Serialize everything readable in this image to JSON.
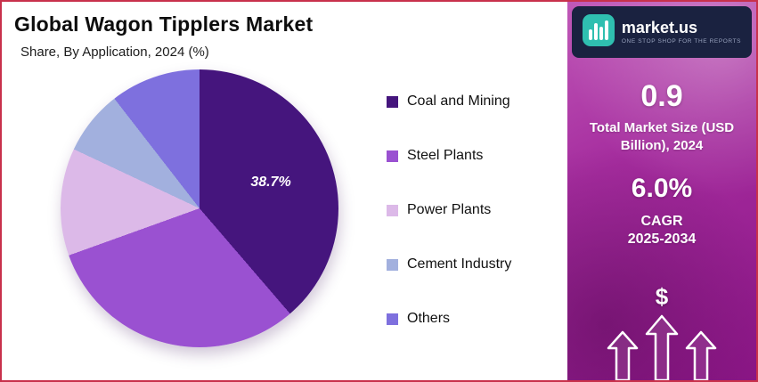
{
  "header": {
    "title": "Global Wagon Tipplers Market",
    "subtitle": "Share, By Application, 2024 (%)"
  },
  "chart_data": {
    "type": "pie",
    "categories": [
      "Coal and Mining",
      "Steel Plants",
      "Power Plants",
      "Cement Industry",
      "Others"
    ],
    "values": [
      38.7,
      30.8,
      12.5,
      7.5,
      10.5
    ],
    "colors": [
      "#45157d",
      "#9a51d1",
      "#dcb9e8",
      "#a2b0de",
      "#7e70de"
    ],
    "title": "Global Wagon Tipplers Market",
    "subtitle": "Share, By Application, 2024 (%)",
    "data_label": "38.7%",
    "labeled_slice": "Coal and Mining",
    "legend_position": "right",
    "start_angle_deg": 0,
    "direction": "clockwise"
  },
  "sidebar": {
    "logo": {
      "brand": "market.us",
      "tagline": "ONE STOP SHOP FOR THE REPORTS",
      "icon_color": "#2fbfb0",
      "box_color": "#1a2240"
    },
    "market_size": {
      "value": "0.9",
      "label": "Total Market Size (USD Billion), 2024"
    },
    "cagr": {
      "value": "6.0%",
      "label": "CAGR",
      "period": "2025-2034"
    },
    "dollar_symbol": "$",
    "accent_color": "#a52c9e"
  }
}
